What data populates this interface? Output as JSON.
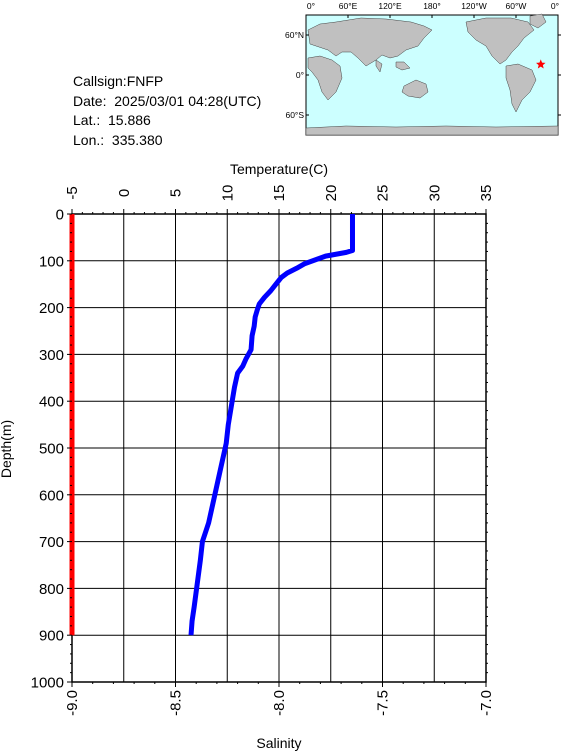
{
  "info": {
    "callsign": "Callsign:FNFP",
    "date": "Date:  2025/03/01 04:28(UTC)",
    "lat": "Lat.:  15.886",
    "lon": "Lon.:  335.380"
  },
  "map": {
    "lon_labels": [
      "0°",
      "60°E",
      "120°E",
      "180°",
      "120°W",
      "60°W",
      "0°"
    ],
    "lat_labels": [
      "60°N",
      "0°",
      "60°S"
    ],
    "marker_lon": 335.38,
    "marker_lat": 15.886,
    "colors": {
      "ocean": "#ccffff",
      "land": "#c0c0c0",
      "marker": "#ff0000"
    }
  },
  "chart_data": {
    "type": "line",
    "ylabel": "Depth(m)",
    "ylim": [
      0,
      1000
    ],
    "yticks": [
      0,
      100,
      200,
      300,
      400,
      500,
      600,
      700,
      800,
      900,
      1000
    ],
    "y_inverted": true,
    "grid": true,
    "temperature_axis": {
      "label": "Temperature(C)",
      "position": "top",
      "range": [
        -5,
        35
      ],
      "ticks": [
        -5,
        0,
        5,
        10,
        15,
        20,
        25,
        30,
        35
      ]
    },
    "salinity_axis": {
      "label": "Salinity",
      "position": "bottom",
      "range": [
        -9.0,
        -7.0
      ],
      "ticks": [
        "-9.0",
        "-8.5",
        "-8.0",
        "-7.5",
        "-7.0"
      ],
      "tick_values": [
        -9.0,
        -8.5,
        -8.0,
        -7.5,
        -7.0
      ]
    },
    "series": [
      {
        "axis": "temperature",
        "color": "#0000ff",
        "points": [
          [
            22.1,
            0
          ],
          [
            22.1,
            20
          ],
          [
            22.1,
            40
          ],
          [
            22.1,
            60
          ],
          [
            22.1,
            78
          ],
          [
            21.5,
            82
          ],
          [
            20.5,
            86
          ],
          [
            19.5,
            90
          ],
          [
            18.5,
            98
          ],
          [
            17.5,
            106
          ],
          [
            16.7,
            116
          ],
          [
            15.8,
            126
          ],
          [
            15.2,
            136
          ],
          [
            14.7,
            150
          ],
          [
            14.2,
            164
          ],
          [
            13.6,
            178
          ],
          [
            13.1,
            192
          ],
          [
            12.9,
            205
          ],
          [
            12.7,
            220
          ],
          [
            12.6,
            240
          ],
          [
            12.4,
            260
          ],
          [
            12.3,
            290
          ],
          [
            11.8,
            310
          ],
          [
            11.5,
            325
          ],
          [
            11.0,
            340
          ],
          [
            10.7,
            370
          ],
          [
            10.4,
            410
          ],
          [
            10.1,
            450
          ],
          [
            9.9,
            490
          ],
          [
            9.4,
            540
          ],
          [
            9.0,
            580
          ],
          [
            8.6,
            620
          ],
          [
            8.2,
            660
          ],
          [
            7.9,
            680
          ],
          [
            7.6,
            700
          ],
          [
            7.4,
            740
          ],
          [
            7.1,
            790
          ],
          [
            6.8,
            840
          ],
          [
            6.6,
            870
          ],
          [
            6.5,
            900
          ]
        ]
      },
      {
        "axis": "salinity",
        "color": "#ff0000",
        "points": [
          [
            -9.0,
            0
          ],
          [
            -9.0,
            900
          ]
        ]
      }
    ]
  }
}
